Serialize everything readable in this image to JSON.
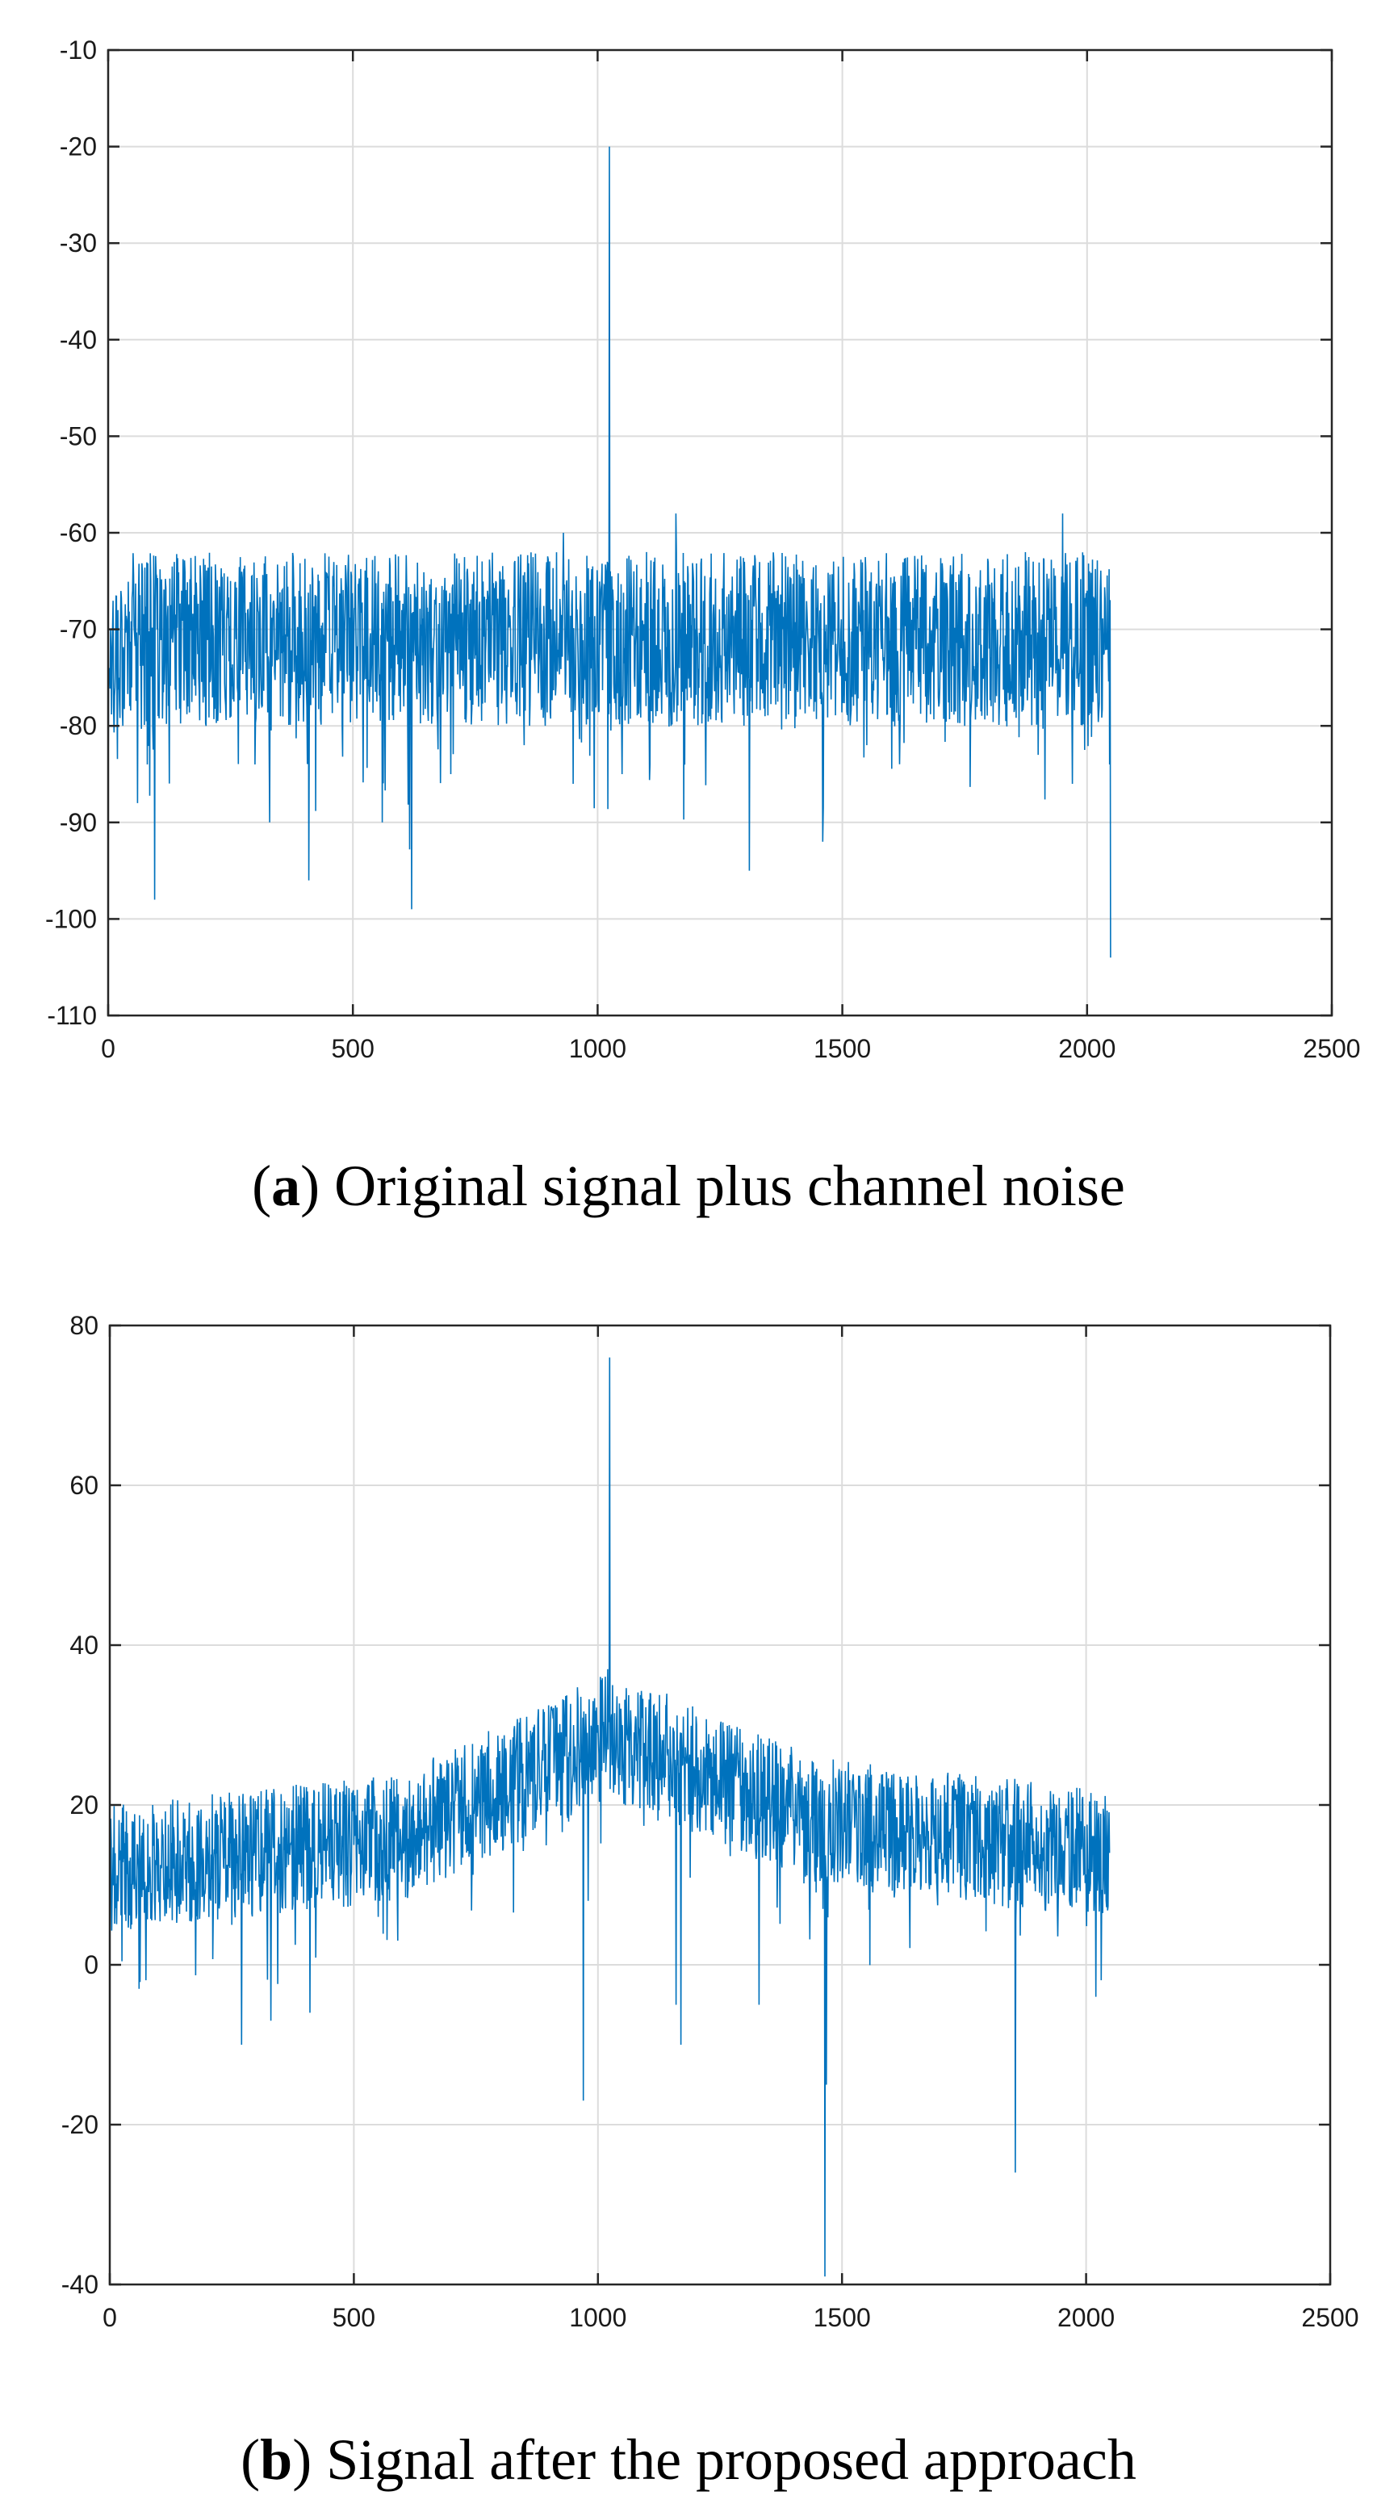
{
  "chart_data": [
    {
      "type": "line",
      "panel_letter": "a",
      "caption": "Original signal plus channel noise",
      "xlim": [
        0,
        2500
      ],
      "ylim": [
        -110,
        -10
      ],
      "xticks": [
        0,
        500,
        1000,
        1500,
        2000,
        2500
      ],
      "yticks": [
        -110,
        -100,
        -90,
        -80,
        -70,
        -60,
        -50,
        -40,
        -30,
        -20,
        -10
      ],
      "grid": true,
      "series_color": "#0072BD",
      "series": [
        {
          "x": [
            0,
            20,
            30,
            50,
            60,
            70,
            80,
            95,
            100,
            120,
            150,
            200,
            250,
            300,
            330,
            350,
            400,
            410,
            450,
            470,
            500,
            550,
            560,
            600,
            620,
            650,
            700,
            750,
            800,
            850,
            900,
            930,
            950,
            1000,
            1015,
            1020,
            1024,
            1026,
            1030,
            1050,
            1100,
            1150,
            1160,
            1200,
            1250,
            1300,
            1310,
            1350,
            1400,
            1440,
            1460,
            1480,
            1500,
            1550,
            1600,
            1650,
            1700,
            1750,
            1800,
            1850,
            1900,
            1930,
            1950,
            1970,
            2000,
            2040,
            2046,
            2048
          ],
          "y": [
            -86,
            -68,
            -80,
            -66,
            -88,
            -64,
            -84,
            -98,
            -70,
            -72,
            -66,
            -80,
            -65,
            -84,
            -90,
            -70,
            -75,
            -96,
            -68,
            -72,
            -70,
            -73,
            -90,
            -68,
            -99,
            -66,
            -85,
            -68,
            -64,
            -82,
            -71,
            -60,
            -86,
            -66,
            -68,
            -63,
            -20,
            -64,
            -68,
            -85,
            -62,
            -80,
            -58,
            -70,
            -74,
            -63,
            -95,
            -68,
            -74,
            -65,
            -92,
            -70,
            -72,
            -82,
            -70,
            -72,
            -70,
            -80,
            -72,
            -70,
            -83,
            -75,
            -58,
            -86,
            -66,
            -72,
            -84,
            -104
          ],
          "noise_band": [
            -80,
            -62
          ]
        }
      ]
    },
    {
      "type": "line",
      "panel_letter": "b",
      "caption": "Signal after the proposed approach",
      "xlim": [
        0,
        2500
      ],
      "ylim": [
        -40,
        80
      ],
      "xticks": [
        0,
        500,
        1000,
        1500,
        2000,
        2500
      ],
      "yticks": [
        -40,
        -20,
        0,
        20,
        40,
        60,
        80
      ],
      "grid": true,
      "series_color": "#0072BD",
      "series": [
        {
          "x": [
            0,
            40,
            60,
            100,
            150,
            200,
            250,
            270,
            300,
            330,
            400,
            410,
            450,
            500,
            550,
            600,
            650,
            700,
            750,
            800,
            850,
            900,
            950,
            970,
            990,
            1000,
            1020,
            1024,
            1026,
            1030,
            1050,
            1100,
            1150,
            1160,
            1170,
            1200,
            1250,
            1300,
            1330,
            1400,
            1450,
            1465,
            1468,
            1480,
            1500,
            1550,
            1600,
            1650,
            1700,
            1750,
            1800,
            1850,
            1855,
            1860,
            1900,
            1950,
            2000,
            2020,
            2048
          ],
          "y": [
            3,
            13,
            -3,
            14,
            8,
            16,
            5,
            -10,
            15,
            -7,
            16,
            -6,
            17,
            15,
            6,
            17,
            10,
            18,
            16,
            20,
            22,
            24,
            30,
            -17,
            33,
            30,
            37,
            76,
            28,
            35,
            30,
            26,
            25,
            -5,
            -10,
            23,
            20,
            18,
            -5,
            18,
            16,
            -39,
            -15,
            14,
            17,
            10,
            14,
            12,
            14,
            12,
            15,
            13,
            -26,
            8,
            12,
            15,
            10,
            -4,
            14
          ],
          "noise_band": [
            6,
            24
          ]
        }
      ]
    }
  ]
}
